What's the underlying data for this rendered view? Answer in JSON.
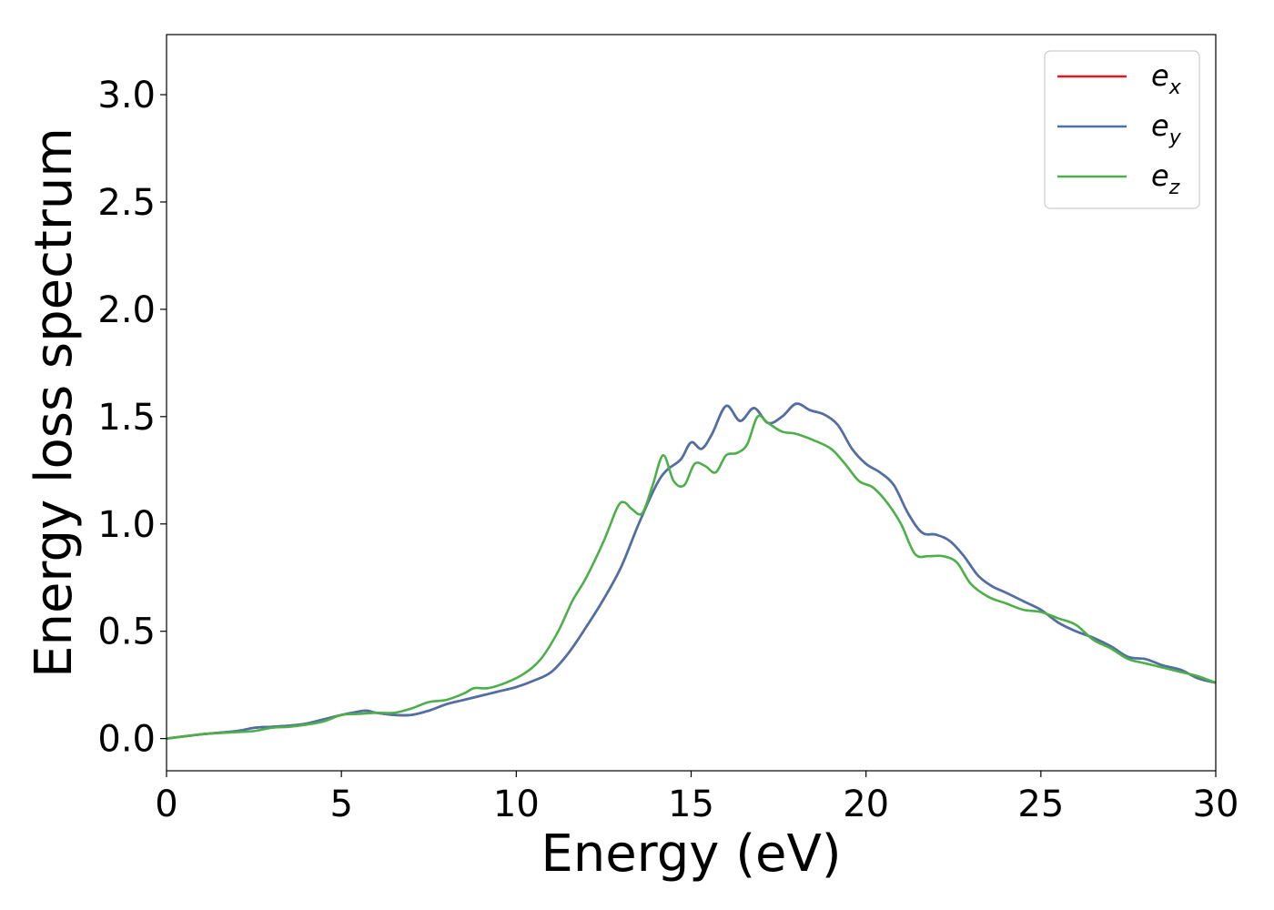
{
  "chart_data": {
    "type": "line",
    "title": "",
    "xlabel": "Energy (eV)",
    "ylabel": "Energy loss spectrum",
    "xlim": [
      0,
      30
    ],
    "ylim": [
      -0.15,
      3.28
    ],
    "xticks": [
      "0",
      "5",
      "10",
      "15",
      "20",
      "25",
      "30"
    ],
    "yticks": [
      "0.0",
      "0.5",
      "1.0",
      "1.5",
      "2.0",
      "2.5",
      "3.0"
    ],
    "grid": false,
    "legend_position": "top-right",
    "series": [
      {
        "name": "e_x",
        "legend_base": "e",
        "legend_sub": "x",
        "color": "#e41a1c",
        "x": [
          0,
          1,
          2,
          2.5,
          3,
          3.5,
          4,
          4.5,
          5,
          5.3,
          5.7,
          6,
          6.5,
          7,
          7.5,
          8,
          8.5,
          9,
          9.5,
          10,
          10.5,
          11,
          11.5,
          12,
          12.5,
          13,
          13.5,
          14,
          14.3,
          14.7,
          15,
          15.3,
          15.6,
          16,
          16.4,
          16.8,
          17.2,
          17.6,
          18,
          18.4,
          18.8,
          19.2,
          19.6,
          20,
          20.4,
          20.8,
          21.2,
          21.6,
          22,
          22.4,
          22.8,
          23.2,
          23.6,
          24,
          24.5,
          25,
          25.5,
          26,
          26.5,
          27,
          27.5,
          28,
          28.5,
          29,
          29.5,
          30
        ],
        "y": [
          0.0,
          0.02,
          0.035,
          0.05,
          0.055,
          0.06,
          0.07,
          0.09,
          0.11,
          0.12,
          0.13,
          0.12,
          0.11,
          0.11,
          0.13,
          0.16,
          0.18,
          0.2,
          0.22,
          0.24,
          0.27,
          0.31,
          0.4,
          0.52,
          0.65,
          0.8,
          1.0,
          1.18,
          1.25,
          1.3,
          1.38,
          1.35,
          1.42,
          1.55,
          1.48,
          1.54,
          1.47,
          1.5,
          1.56,
          1.53,
          1.51,
          1.46,
          1.35,
          1.28,
          1.24,
          1.18,
          1.05,
          0.96,
          0.95,
          0.92,
          0.85,
          0.76,
          0.71,
          0.68,
          0.64,
          0.6,
          0.54,
          0.5,
          0.47,
          0.43,
          0.38,
          0.37,
          0.34,
          0.32,
          0.28,
          0.26
        ]
      },
      {
        "name": "e_y",
        "legend_base": "e",
        "legend_sub": "y",
        "color": "#4a72a8",
        "x": [
          0,
          1,
          2,
          2.5,
          3,
          3.5,
          4,
          4.5,
          5,
          5.3,
          5.7,
          6,
          6.5,
          7,
          7.5,
          8,
          8.5,
          9,
          9.5,
          10,
          10.5,
          11,
          11.5,
          12,
          12.5,
          13,
          13.5,
          14,
          14.3,
          14.7,
          15,
          15.3,
          15.6,
          16,
          16.4,
          16.8,
          17.2,
          17.6,
          18,
          18.4,
          18.8,
          19.2,
          19.6,
          20,
          20.4,
          20.8,
          21.2,
          21.6,
          22,
          22.4,
          22.8,
          23.2,
          23.6,
          24,
          24.5,
          25,
          25.5,
          26,
          26.5,
          27,
          27.5,
          28,
          28.5,
          29,
          29.5,
          30
        ],
        "y": [
          0.0,
          0.02,
          0.035,
          0.05,
          0.055,
          0.06,
          0.07,
          0.09,
          0.11,
          0.12,
          0.13,
          0.12,
          0.11,
          0.11,
          0.13,
          0.16,
          0.18,
          0.2,
          0.22,
          0.24,
          0.27,
          0.31,
          0.4,
          0.52,
          0.65,
          0.8,
          1.0,
          1.18,
          1.25,
          1.3,
          1.38,
          1.35,
          1.42,
          1.55,
          1.48,
          1.54,
          1.47,
          1.5,
          1.56,
          1.53,
          1.51,
          1.46,
          1.35,
          1.28,
          1.24,
          1.18,
          1.05,
          0.96,
          0.95,
          0.92,
          0.85,
          0.76,
          0.71,
          0.68,
          0.64,
          0.6,
          0.54,
          0.5,
          0.47,
          0.43,
          0.38,
          0.37,
          0.34,
          0.32,
          0.28,
          0.26
        ]
      },
      {
        "name": "e_z",
        "legend_base": "e",
        "legend_sub": "z",
        "color": "#4daf4a",
        "x": [
          0,
          1,
          2,
          2.5,
          3,
          3.5,
          4,
          4.5,
          5,
          5.5,
          6,
          6.5,
          7,
          7.5,
          8,
          8.5,
          8.8,
          9.2,
          9.7,
          10.2,
          10.7,
          11.2,
          11.6,
          12,
          12.5,
          12.9,
          13.1,
          13.3,
          13.6,
          13.9,
          14.2,
          14.5,
          14.8,
          15.1,
          15.4,
          15.7,
          16.0,
          16.3,
          16.6,
          16.9,
          17.2,
          17.6,
          18,
          18.5,
          19,
          19.4,
          19.8,
          20.2,
          20.6,
          21,
          21.4,
          21.8,
          22.2,
          22.6,
          23,
          23.5,
          24,
          24.5,
          25,
          25.5,
          26,
          26.5,
          27,
          27.5,
          28,
          28.5,
          29,
          29.5,
          30
        ],
        "y": [
          0.0,
          0.02,
          0.03,
          0.035,
          0.05,
          0.055,
          0.065,
          0.08,
          0.11,
          0.115,
          0.12,
          0.12,
          0.14,
          0.17,
          0.18,
          0.21,
          0.235,
          0.235,
          0.26,
          0.3,
          0.37,
          0.5,
          0.64,
          0.75,
          0.92,
          1.08,
          1.1,
          1.07,
          1.05,
          1.18,
          1.32,
          1.2,
          1.18,
          1.28,
          1.27,
          1.24,
          1.32,
          1.33,
          1.37,
          1.5,
          1.47,
          1.43,
          1.42,
          1.39,
          1.35,
          1.28,
          1.2,
          1.17,
          1.1,
          1.0,
          0.86,
          0.85,
          0.85,
          0.82,
          0.72,
          0.66,
          0.63,
          0.6,
          0.59,
          0.56,
          0.53,
          0.46,
          0.42,
          0.37,
          0.35,
          0.33,
          0.31,
          0.29,
          0.26
        ]
      }
    ]
  }
}
